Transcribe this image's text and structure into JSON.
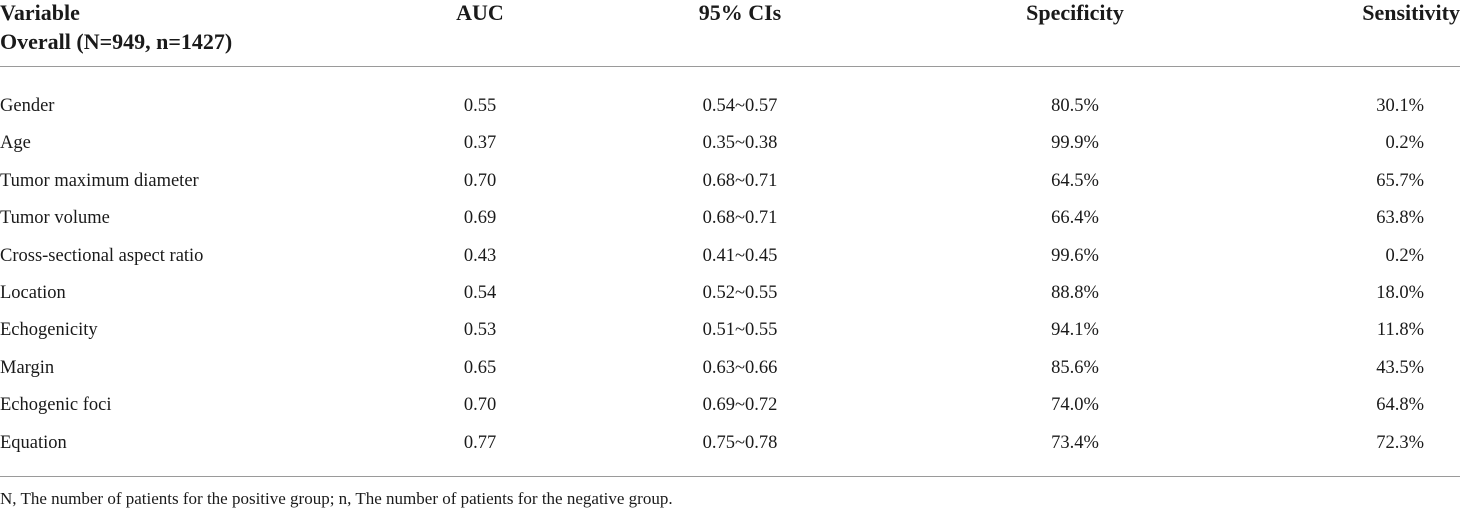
{
  "header": {
    "variable": "Variable",
    "overall": "Overall (N=949, n=1427)",
    "auc": "AUC",
    "ci": "95% CIs",
    "specificity": "Specificity",
    "sensitivity": "Sensitivity"
  },
  "rows": [
    {
      "name": "Gender",
      "auc": "0.55",
      "ci": "0.54~0.57",
      "specificity": "80.5%",
      "sensitivity": "30.1%"
    },
    {
      "name": "Age",
      "auc": "0.37",
      "ci": "0.35~0.38",
      "specificity": "99.9%",
      "sensitivity": "0.2%"
    },
    {
      "name": "Tumor maximum diameter",
      "auc": "0.70",
      "ci": "0.68~0.71",
      "specificity": "64.5%",
      "sensitivity": "65.7%"
    },
    {
      "name": "Tumor volume",
      "auc": "0.69",
      "ci": "0.68~0.71",
      "specificity": "66.4%",
      "sensitivity": "63.8%"
    },
    {
      "name": "Cross-sectional aspect ratio",
      "auc": "0.43",
      "ci": "0.41~0.45",
      "specificity": "99.6%",
      "sensitivity": "0.2%"
    },
    {
      "name": "Location",
      "auc": "0.54",
      "ci": "0.52~0.55",
      "specificity": "88.8%",
      "sensitivity": "18.0%"
    },
    {
      "name": "Echogenicity",
      "auc": "0.53",
      "ci": "0.51~0.55",
      "specificity": "94.1%",
      "sensitivity": "11.8%"
    },
    {
      "name": "Margin",
      "auc": "0.65",
      "ci": "0.63~0.66",
      "specificity": "85.6%",
      "sensitivity": "43.5%"
    },
    {
      "name": "Echogenic foci",
      "auc": "0.70",
      "ci": "0.69~0.72",
      "specificity": "74.0%",
      "sensitivity": "64.8%"
    },
    {
      "name": "Equation",
      "auc": "0.77",
      "ci": "0.75~0.78",
      "specificity": "73.4%",
      "sensitivity": "72.3%"
    }
  ],
  "footnote": "N, The number of patients for the positive group; n, The number of patients for the negative group."
}
